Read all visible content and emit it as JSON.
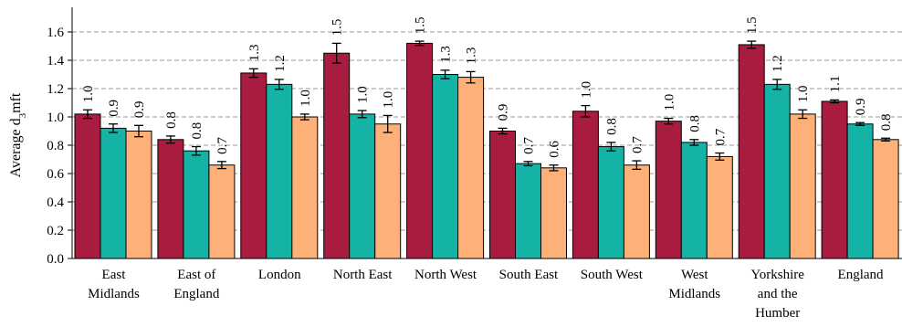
{
  "chart_data": {
    "type": "bar",
    "ylabel_prefix": "Average d",
    "ylabel_sub": "3",
    "ylabel_suffix": "mft",
    "ylim": [
      0,
      1.7
    ],
    "yticks": [
      "0.0",
      "0.2",
      "0.4",
      "0.6",
      "0.8",
      "1.0",
      "1.2",
      "1.4",
      "1.6"
    ],
    "grid": "horizontal dashed",
    "categories": [
      [
        "East",
        "Midlands"
      ],
      [
        "East of",
        "England"
      ],
      [
        "London"
      ],
      [
        "North East"
      ],
      [
        "North West"
      ],
      [
        "South East"
      ],
      [
        "South West"
      ],
      [
        "West",
        "Midlands"
      ],
      [
        "Yorkshire",
        "and the",
        "Humber"
      ],
      [
        "England"
      ]
    ],
    "series": [
      {
        "color": "#a81c40",
        "values": [
          1.02,
          0.84,
          1.31,
          1.45,
          1.52,
          0.9,
          1.04,
          0.97,
          1.51,
          1.11
        ],
        "errors": [
          0.03,
          0.025,
          0.03,
          0.07,
          0.015,
          0.02,
          0.04,
          0.02,
          0.025,
          0.01
        ],
        "labels": [
          "1.0",
          "0.8",
          "1.3",
          "1.5",
          "1.5",
          "0.9",
          "1.0",
          "1.0",
          "1.5",
          "1.1"
        ]
      },
      {
        "color": "#14b3a6",
        "values": [
          0.92,
          0.76,
          1.23,
          1.02,
          1.3,
          0.67,
          0.79,
          0.82,
          1.23,
          0.95
        ],
        "errors": [
          0.03,
          0.03,
          0.035,
          0.025,
          0.03,
          0.015,
          0.03,
          0.02,
          0.035,
          0.01
        ],
        "labels": [
          "0.9",
          "0.8",
          "1.2",
          "1.0",
          "1.3",
          "0.7",
          "0.8",
          "0.8",
          "1.2",
          "0.9"
        ]
      },
      {
        "color": "#fdb179",
        "values": [
          0.9,
          0.66,
          1.0,
          0.95,
          1.28,
          0.64,
          0.66,
          0.72,
          1.02,
          0.84
        ],
        "errors": [
          0.04,
          0.025,
          0.02,
          0.06,
          0.04,
          0.02,
          0.03,
          0.025,
          0.03,
          0.01
        ],
        "labels": [
          "0.9",
          "0.7",
          "1.0",
          "1.0",
          "1.3",
          "0.6",
          "0.7",
          "0.7",
          "1.0",
          "0.8"
        ]
      }
    ]
  }
}
